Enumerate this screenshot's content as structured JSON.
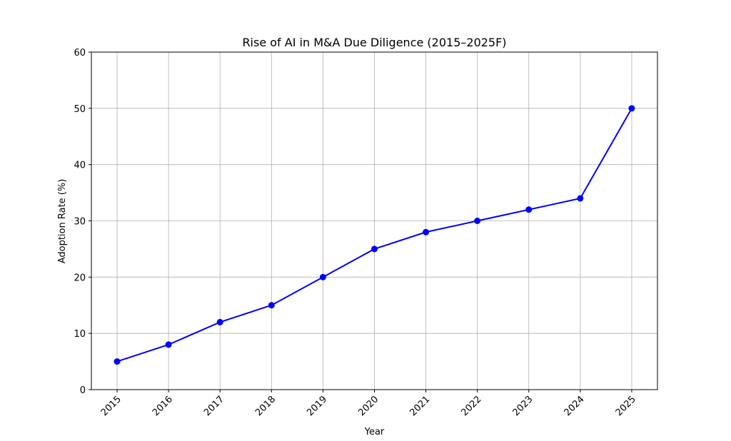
{
  "chart_data": {
    "type": "line",
    "title": "Rise of AI in M&A Due Diligence (2015–2025F)",
    "xlabel": "Year",
    "ylabel": "Adoption Rate (%)",
    "x": [
      2015,
      2016,
      2017,
      2018,
      2019,
      2020,
      2021,
      2022,
      2023,
      2024,
      2025
    ],
    "xtick_labels": [
      "2015",
      "2016",
      "2017",
      "2018",
      "2019",
      "2020",
      "2021",
      "2022",
      "2023",
      "2024",
      "2025"
    ],
    "series": [
      {
        "values": [
          5,
          8,
          12,
          15,
          20,
          25,
          28,
          30,
          32,
          34,
          50
        ],
        "color": "#0000ff",
        "marker": "circle"
      }
    ],
    "xlim": [
      2014.5,
      2025.5
    ],
    "ylim": [
      0,
      60
    ],
    "yticks": [
      0,
      10,
      20,
      30,
      40,
      50,
      60
    ],
    "grid": true,
    "legend": "none"
  }
}
